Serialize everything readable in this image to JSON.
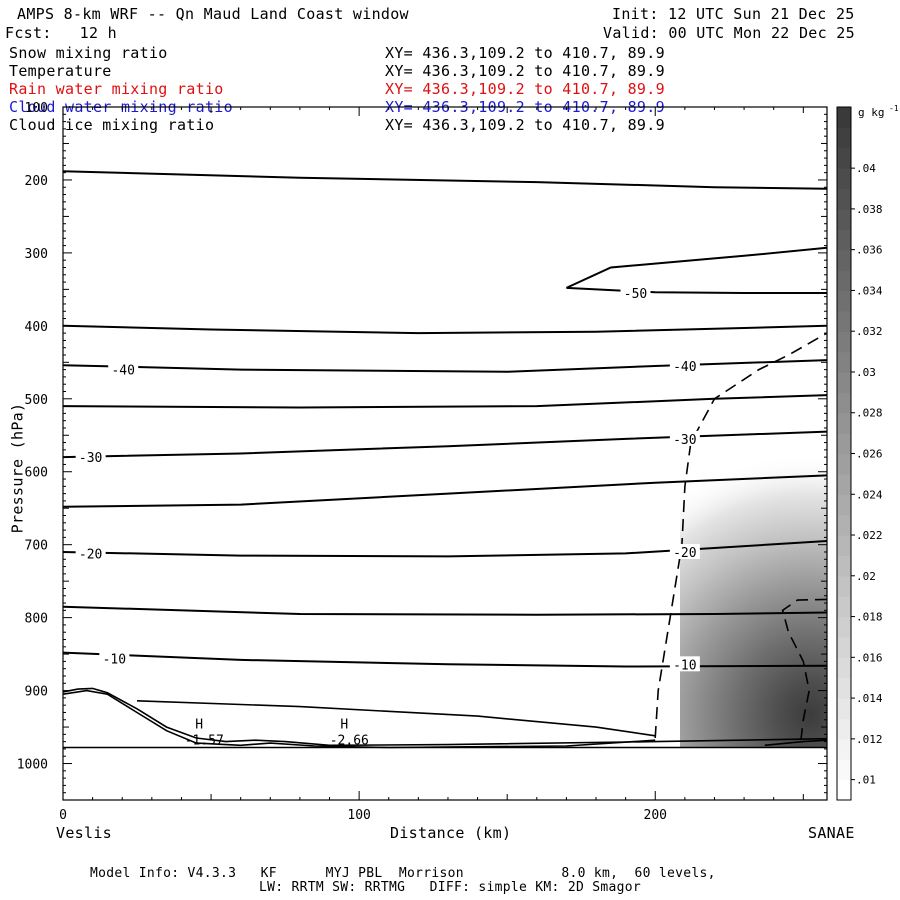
{
  "header": {
    "title": "AMPS 8-km WRF -- Qn Maud Land Coast window",
    "init": "Init: 12 UTC Sun 21 Dec 25",
    "fcst": "Fcst:   12 h",
    "valid": "Valid: 00 UTC Mon 22 Dec 25"
  },
  "legend": [
    {
      "name": "Snow mixing ratio",
      "xy": "XY= 436.3,109.2 to 410.7, 89.9",
      "color": "#000000"
    },
    {
      "name": "Temperature",
      "xy": "XY= 436.3,109.2 to 410.7, 89.9",
      "color": "#000000"
    },
    {
      "name": "Rain water mixing ratio",
      "xy": "XY= 436.3,109.2 to 410.7, 89.9",
      "color": "#e01010"
    },
    {
      "name": "Cloud water mixing ratio",
      "xy": "XY= 436.3,109.2 to 410.7, 89.9",
      "color": "#1a1ad0"
    },
    {
      "name": "Cloud ice mixing ratio",
      "xy": "XY= 436.3,109.2 to 410.7, 89.9",
      "color": "#000000"
    }
  ],
  "footer": {
    "line1": "Model Info: V4.3.3   KF      MYJ PBL  Morrison            8.0 km,  60 levels,",
    "line2": "LW: RRTM SW: RRTMG   DIFF: simple KM: 2D Smagor"
  },
  "chart_data": {
    "type": "cross-section",
    "xlabel": "Distance (km)",
    "ylabel": "Pressure (hPa)",
    "xlim": [
      0,
      258
    ],
    "ylim": [
      1050,
      100
    ],
    "x_ticks": [
      0,
      100,
      200
    ],
    "y_ticks": [
      100,
      200,
      300,
      400,
      500,
      600,
      700,
      800,
      900,
      1000
    ],
    "endpoint_left": "Veslis",
    "endpoint_right": "SANAE",
    "colorbar": {
      "unit": "g kg",
      "unit_exp": "-1",
      "ticks": [
        ".01",
        ".012",
        ".014",
        ".016",
        ".018",
        ".02",
        ".022",
        ".024",
        ".026",
        ".028",
        ".03",
        ".032",
        ".034",
        ".036",
        ".038",
        ".04"
      ],
      "range": [
        0.009,
        0.043
      ]
    },
    "temperature_contours": [
      {
        "label": "-50",
        "label_at": [
          193,
          355
        ],
        "points": [
          [
            170,
            348
          ],
          [
            185,
            320
          ],
          [
            230,
            304
          ],
          [
            258,
            293
          ]
        ]
      },
      {
        "label": "",
        "label_at": null,
        "points": [
          [
            170,
            348
          ],
          [
            200,
            354
          ],
          [
            230,
            355
          ],
          [
            258,
            355
          ]
        ]
      },
      {
        "label": "",
        "label_at": null,
        "points": [
          [
            0,
            188
          ],
          [
            80,
            197
          ],
          [
            160,
            203
          ],
          [
            220,
            210
          ],
          [
            258,
            212
          ]
        ]
      },
      {
        "label": "",
        "label_at": null,
        "points": [
          [
            0,
            400
          ],
          [
            50,
            405
          ],
          [
            120,
            410
          ],
          [
            180,
            408
          ],
          [
            230,
            403
          ],
          [
            258,
            400
          ]
        ]
      },
      {
        "label": "-40",
        "label_at": [
          20,
          460
        ],
        "points": [
          [
            0,
            454
          ],
          [
            60,
            460
          ],
          [
            150,
            463
          ],
          [
            200,
            455
          ],
          [
            258,
            447
          ]
        ]
      },
      {
        "label": "",
        "label_at": null,
        "points": [
          [
            0,
            510
          ],
          [
            80,
            512
          ],
          [
            160,
            510
          ],
          [
            220,
            500
          ],
          [
            258,
            495
          ]
        ]
      },
      {
        "label": "-30",
        "label_at": [
          9,
          580
        ],
        "points": [
          [
            0,
            580
          ],
          [
            60,
            575
          ],
          [
            130,
            565
          ],
          [
            190,
            555
          ],
          [
            258,
            545
          ]
        ]
      },
      {
        "label": "",
        "label_at": null,
        "points": [
          [
            0,
            648
          ],
          [
            60,
            645
          ],
          [
            130,
            630
          ],
          [
            200,
            615
          ],
          [
            258,
            605
          ]
        ]
      },
      {
        "label": "-20",
        "label_at": [
          9,
          712
        ],
        "points": [
          [
            0,
            710
          ],
          [
            60,
            715
          ],
          [
            130,
            716
          ],
          [
            190,
            712
          ],
          [
            258,
            695
          ]
        ]
      },
      {
        "label": "",
        "label_at": null,
        "points": [
          [
            0,
            785
          ],
          [
            80,
            795
          ],
          [
            160,
            796
          ],
          [
            220,
            795
          ],
          [
            258,
            793
          ]
        ]
      },
      {
        "label": "-10",
        "label_at": [
          17,
          856
        ],
        "points": [
          [
            0,
            848
          ],
          [
            60,
            858
          ],
          [
            130,
            864
          ],
          [
            190,
            867
          ],
          [
            258,
            866
          ]
        ]
      }
    ],
    "highs": [
      {
        "label": "H",
        "value": "-1.57",
        "x": 46,
        "p": 963
      },
      {
        "label": "H",
        "value": "-2.66",
        "x": 95,
        "p": 963
      }
    ],
    "value_labels": {
      "upper_-40": "-40",
      "upper_-30": "-30",
      "upper_-20": "-20",
      "upper_-10": "-10"
    }
  }
}
